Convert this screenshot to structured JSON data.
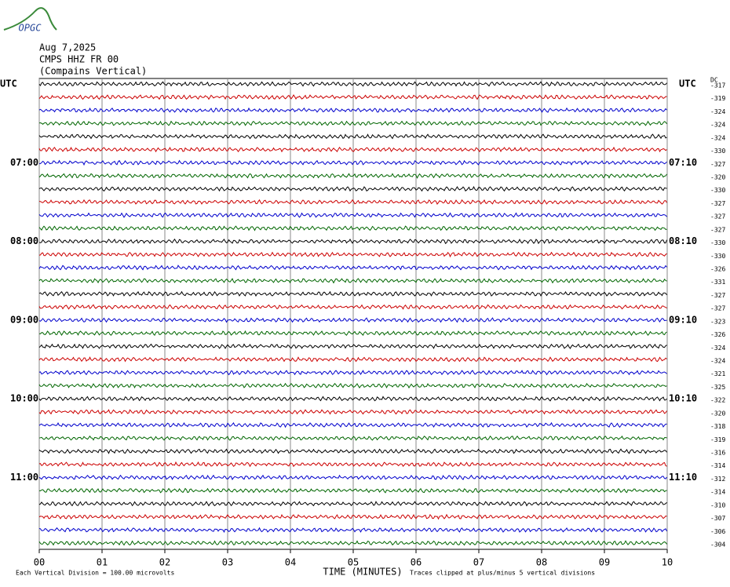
{
  "header": {
    "logo": "OPGC",
    "date": "Aug 7,2025",
    "station": "CMPS HHZ FR 00",
    "location": "(Compains Vertical)"
  },
  "chart_data": {
    "type": "helicorder",
    "xlabel": "TIME (MINUTES)",
    "xlim": [
      0,
      10
    ],
    "xticks": [
      {
        "value": 0,
        "label": "00"
      },
      {
        "value": 1,
        "label": "01"
      },
      {
        "value": 2,
        "label": "02"
      },
      {
        "value": 3,
        "label": "03"
      },
      {
        "value": 4,
        "label": "04"
      },
      {
        "value": 5,
        "label": "05"
      },
      {
        "value": 6,
        "label": "06"
      },
      {
        "value": 7,
        "label": "07"
      },
      {
        "value": 8,
        "label": "08"
      },
      {
        "value": 9,
        "label": "09"
      },
      {
        "value": 10,
        "label": "10"
      }
    ],
    "grid": true,
    "dc_header": "DC",
    "colors": [
      "#000000",
      "#cc0000",
      "#0000cc",
      "#006600"
    ],
    "dc": [
      -317,
      -319,
      -324,
      -324,
      -324,
      -330,
      -327,
      -320,
      -330,
      -327,
      -327,
      -327,
      -330,
      -330,
      -326,
      -331,
      -327,
      -327,
      -323,
      -326,
      -324,
      -324,
      -321,
      -325,
      -322,
      -320,
      -318,
      -319,
      -316,
      -314,
      -312,
      -314,
      -310,
      -307,
      -306,
      -304
    ],
    "left_labels": [
      "UTC",
      null,
      null,
      null,
      null,
      null,
      "07:00",
      null,
      null,
      null,
      null,
      null,
      "08:00",
      null,
      null,
      null,
      null,
      null,
      "09:00",
      null,
      null,
      null,
      null,
      null,
      "10:00",
      null,
      null,
      null,
      null,
      null,
      "11:00",
      null,
      null,
      null,
      null,
      null
    ],
    "right_labels": [
      "UTC",
      null,
      null,
      null,
      null,
      null,
      "07:10",
      null,
      null,
      null,
      null,
      null,
      "08:10",
      null,
      null,
      null,
      null,
      null,
      "09:10",
      null,
      null,
      null,
      null,
      null,
      "10:10",
      null,
      null,
      null,
      null,
      null,
      "11:10",
      null,
      null,
      null,
      null,
      null
    ],
    "notes": [
      "Each Vertical Division =  100.00 microvolts",
      "Traces clipped at plus/minus 5 vertical divisions"
    ]
  }
}
